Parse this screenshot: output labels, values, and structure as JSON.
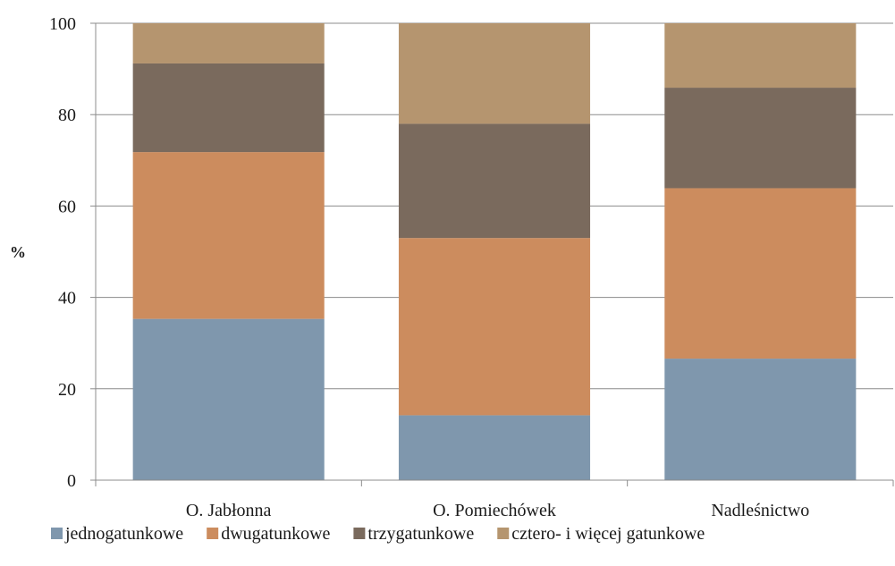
{
  "chart_data": {
    "type": "bar",
    "stacked": true,
    "categories": [
      "O. Jabłonna",
      "O. Pomiechówek",
      "Nadleśnictwo"
    ],
    "series": [
      {
        "name": "jednogatunkowe",
        "color": "#7f97ad",
        "values": [
          35.3,
          14.2,
          26.6
        ]
      },
      {
        "name": "dwugatunkowe",
        "color": "#cc8c5e",
        "values": [
          36.5,
          38.8,
          37.3
        ]
      },
      {
        "name": "trzygatunkowe",
        "color": "#7a6a5d",
        "values": [
          19.4,
          25.0,
          22.0
        ]
      },
      {
        "name": "cztero- i więcej gatunkowe",
        "color": "#b5956f",
        "values": [
          8.8,
          22.0,
          14.1
        ]
      }
    ],
    "ylabel": "%",
    "ylim": [
      0,
      100
    ],
    "yticks": [
      0,
      20,
      40,
      60,
      80,
      100
    ],
    "grid": true,
    "legend": "bottom",
    "colors": {
      "grid": "#8c8c8c",
      "axis": "#8c8c8c",
      "text": "#1a1a1a"
    }
  }
}
